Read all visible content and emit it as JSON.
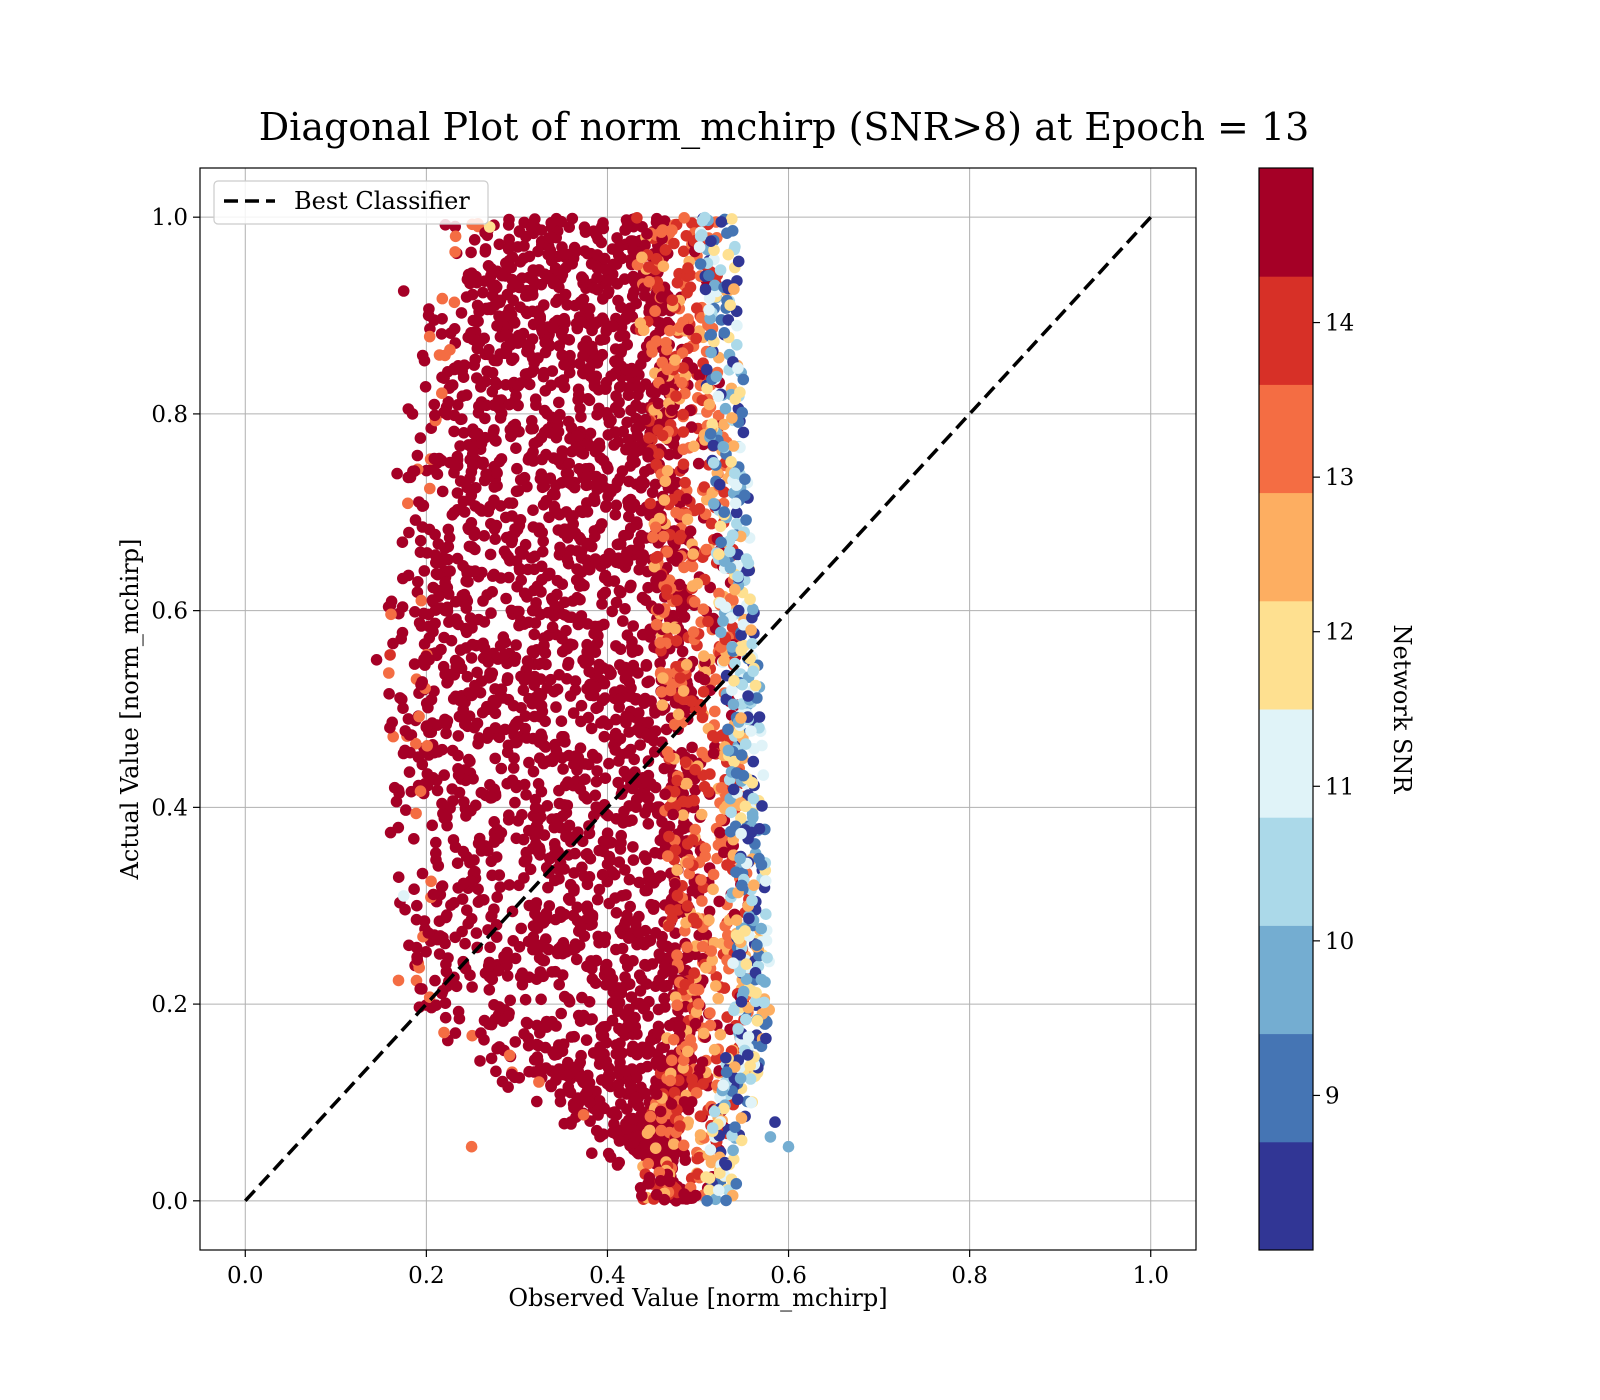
{
  "chart_data": {
    "type": "scatter",
    "title": "Diagonal Plot of norm_mchirp (SNR>8) at Epoch = 13",
    "xlabel": "Observed Value [norm_mchirp]",
    "ylabel": "Actual Value [norm_mchirp]",
    "xlim": [
      -0.05,
      1.05
    ],
    "ylim": [
      -0.05,
      1.05
    ],
    "xticks": [
      0.0,
      0.2,
      0.4,
      0.6,
      0.8,
      1.0
    ],
    "yticks": [
      0.0,
      0.2,
      0.4,
      0.6,
      0.8,
      1.0
    ],
    "xtick_labels": [
      "0.0",
      "0.2",
      "0.4",
      "0.6",
      "0.8",
      "1.0"
    ],
    "ytick_labels": [
      "0.0",
      "0.2",
      "0.4",
      "0.6",
      "0.8",
      "1.0"
    ],
    "grid": true,
    "legend": {
      "placement": "upper-left",
      "entries": [
        "Best Classifier"
      ]
    },
    "reference_line": {
      "name": "Best Classifier",
      "style": "dashed",
      "color": "#000000",
      "points": [
        [
          0.0,
          0.0
        ],
        [
          1.0,
          1.0
        ]
      ]
    },
    "colorbar": {
      "label": "Network SNR",
      "range": [
        8,
        15
      ],
      "ticks": [
        9,
        10,
        11,
        12,
        13,
        14
      ],
      "tick_labels": [
        "9",
        "10",
        "11",
        "12",
        "13",
        "14"
      ],
      "colors": [
        "#313695",
        "#4575b4",
        "#74add1",
        "#abd9e9",
        "#e0f3f8",
        "#fee090",
        "#fdae61",
        "#f46d43",
        "#d73027",
        "#a50026"
      ]
    },
    "point_cloud": {
      "description_color_field": "Network SNR",
      "x_core_range": [
        0.2,
        0.55
      ],
      "y_range": [
        0.0,
        1.0
      ],
      "outer_edge_x_at_y": [
        [
          0.0,
          0.52
        ],
        [
          0.2,
          0.56
        ],
        [
          0.5,
          0.55
        ],
        [
          0.8,
          0.53
        ],
        [
          1.0,
          0.52
        ]
      ],
      "inner_edge_x_at_y": [
        [
          0.0,
          0.5
        ],
        [
          0.2,
          0.22
        ],
        [
          0.5,
          0.2
        ],
        [
          0.8,
          0.22
        ],
        [
          1.0,
          0.27
        ]
      ],
      "sample_points": [
        [
          0.175,
          0.925,
          15
        ],
        [
          0.18,
          0.805,
          15
        ],
        [
          0.145,
          0.55,
          15
        ],
        [
          0.16,
          0.555,
          14
        ],
        [
          0.165,
          0.42,
          15
        ],
        [
          0.175,
          0.31,
          11
        ],
        [
          0.19,
          0.245,
          15
        ],
        [
          0.25,
          0.055,
          13
        ],
        [
          0.585,
          0.08,
          8
        ],
        [
          0.6,
          0.055,
          9.5
        ],
        [
          0.58,
          0.065,
          10
        ],
        [
          0.575,
          0.165,
          8
        ],
        [
          0.57,
          0.225,
          10
        ],
        [
          0.565,
          0.26,
          9
        ],
        [
          0.545,
          0.955,
          8
        ],
        [
          0.55,
          0.835,
          9
        ],
        [
          0.545,
          0.6,
          8
        ],
        [
          0.56,
          0.425,
          12
        ],
        [
          0.51,
          0.0,
          9
        ],
        [
          0.27,
          0.99,
          12
        ]
      ]
    }
  }
}
